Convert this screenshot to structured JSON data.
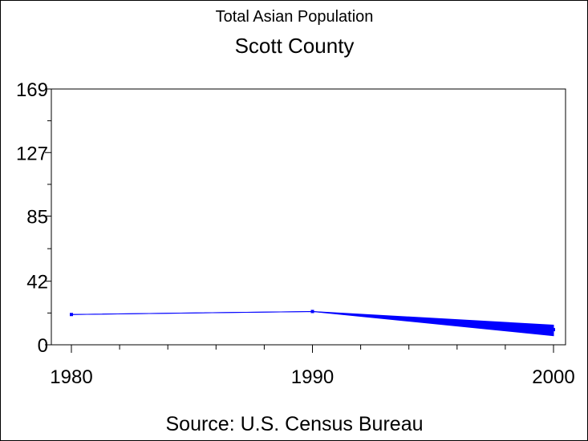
{
  "chart_data": {
    "type": "line",
    "subtitle": "Total Asian Population",
    "title": "Scott County",
    "source": "Source: U.S. Census Bureau",
    "x": [
      1980,
      1990,
      2000
    ],
    "x_tick_labels": [
      "1980",
      "1990",
      "2000"
    ],
    "y_tick_values": [
      0,
      42,
      85,
      127,
      169
    ],
    "y_tick_labels": [
      "0",
      "42",
      "85",
      "127",
      "169"
    ],
    "series": [
      {
        "values": [
          20,
          22,
          10
        ],
        "band_upper": [
          20,
          22,
          13
        ],
        "band_lower": [
          20,
          22,
          6
        ]
      }
    ],
    "ylim": [
      0,
      169
    ],
    "xlim": [
      1980,
      2000
    ],
    "grid": false,
    "line_color": "#0000ff"
  }
}
